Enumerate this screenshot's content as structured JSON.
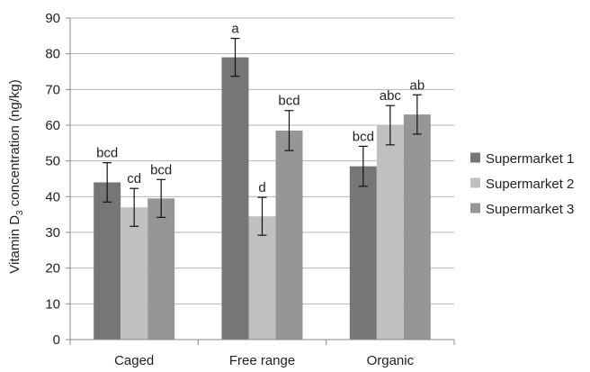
{
  "chart_data": {
    "type": "bar",
    "categories": [
      "Caged",
      "Free range",
      "Organic"
    ],
    "ylabel_main": "Vitamin D",
    "ylabel_sub": "3",
    "ylabel_rest": " concentration (ng/kg)",
    "ylim": [
      0,
      90
    ],
    "yticks": [
      0,
      10,
      20,
      30,
      40,
      50,
      60,
      70,
      80,
      90
    ],
    "grid": true,
    "legend_position": "right",
    "series": [
      {
        "name": "Supermarket 1",
        "color": "#767676",
        "values": [
          44,
          79,
          48.5
        ],
        "errors": [
          5.5,
          5.3,
          5.6
        ],
        "labels": [
          "bcd",
          "a",
          "bcd"
        ]
      },
      {
        "name": "Supermarket 2",
        "color": "#c0c0c0",
        "values": [
          37,
          34.5,
          60
        ],
        "errors": [
          5.3,
          5.3,
          5.5
        ],
        "labels": [
          "cd",
          "d",
          "abc"
        ]
      },
      {
        "name": "Supermarket 3",
        "color": "#969696",
        "values": [
          39.5,
          58.5,
          63
        ],
        "errors": [
          5.3,
          5.6,
          5.5
        ],
        "labels": [
          "bcd",
          "bcd",
          "ab"
        ]
      }
    ]
  }
}
